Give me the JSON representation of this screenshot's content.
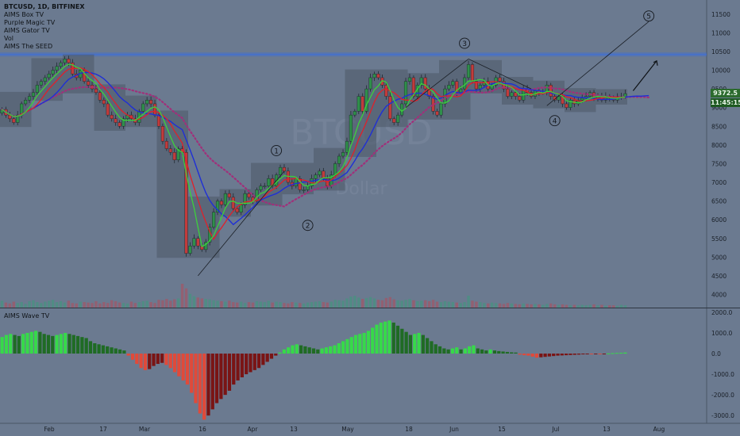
{
  "header": {
    "ticker": "BTCUSD, 1D, BITFINEX",
    "indicators": [
      "AIMS Box TV",
      "Purple Magic TV",
      "AIMS Gator TV",
      "Vol",
      "AIMS The SEED"
    ]
  },
  "watermark": {
    "symbol": "BTCUSD",
    "name": "Dollar"
  },
  "price_tags": {
    "last_price": "9372.5",
    "countdown": "11:45:15"
  },
  "colors": {
    "background": "#6b7a90",
    "up_candle": "#2f8f4a",
    "down_candle": "#c23b3b",
    "blue_line": "#1f2fd6",
    "red_line": "#e0202a",
    "green_line": "#3cd13c",
    "purple_dots": "#a0307a",
    "box_fill": "#4e5a6a",
    "resistance": "#3f6fd6",
    "wave_pos_bright": "#37d94a",
    "wave_pos_dark": "#1f6b24",
    "wave_neg_bright": "#e04a3a",
    "wave_neg_dark": "#7a1414"
  },
  "chart_data": [
    {
      "type": "candlestick",
      "title": "BTCUSD, 1D, BITFINEX",
      "x_ticks": [
        "Feb",
        "17",
        "Mar",
        "16",
        "Apr",
        "13",
        "May",
        "18",
        "Jun",
        "15",
        "Jul",
        "13",
        "Aug"
      ],
      "y_ticks": [
        4000,
        4500,
        5000,
        5500,
        6000,
        6500,
        7000,
        7500,
        8000,
        8500,
        9000,
        9500,
        10000,
        10500,
        11000,
        11500
      ],
      "ylim": [
        3650,
        11750
      ],
      "resistance_level": 10420,
      "closes": [
        8950,
        8800,
        8700,
        8600,
        8800,
        9100,
        9200,
        9300,
        9400,
        9600,
        9700,
        9800,
        9900,
        10000,
        10100,
        10200,
        10300,
        10200,
        9900,
        9800,
        10000,
        9700,
        9600,
        9500,
        9400,
        9200,
        9100,
        8800,
        8700,
        8600,
        8500,
        8700,
        8800,
        8700,
        8600,
        8900,
        9100,
        9200,
        9100,
        8800,
        8500,
        8100,
        7900,
        7800,
        7600,
        7900,
        7800,
        5100,
        5300,
        5500,
        5300,
        5200,
        5400,
        5800,
        6200,
        6500,
        6400,
        6700,
        6600,
        6300,
        6200,
        6400,
        6700,
        6600,
        6500,
        6800,
        6900,
        6900,
        7100,
        6900,
        7200,
        7400,
        7300,
        7000,
        6900,
        7100,
        6800,
        6800,
        6900,
        7100,
        7200,
        7300,
        7100,
        6900,
        7200,
        7500,
        7700,
        7800,
        8100,
        8800,
        8900,
        9300,
        8900,
        9500,
        9800,
        9900,
        9800,
        9600,
        9300,
        8700,
        8600,
        8800,
        9100,
        9700,
        9800,
        9300,
        9600,
        9800,
        9500,
        9300,
        8900,
        8800,
        9100,
        9500,
        9600,
        9700,
        9400,
        9500,
        9800,
        10150,
        9700,
        9500,
        9600,
        9700,
        9500,
        9600,
        9800,
        9700,
        9500,
        9300,
        9400,
        9300,
        9200,
        9500,
        9400,
        9300,
        9450,
        9400,
        9400,
        9600,
        9300,
        9200,
        9300,
        9100,
        9000,
        9200,
        9100,
        9200,
        9250,
        9300,
        9400,
        9250,
        9300,
        9200,
        9300,
        9250,
        9200,
        9300,
        9300,
        9372.5
      ],
      "volume": [
        150,
        110,
        90,
        130,
        100,
        120,
        80,
        140,
        160,
        120,
        100,
        130,
        150,
        170,
        120,
        140,
        110,
        150,
        100,
        90,
        130,
        120,
        110,
        100,
        140,
        90,
        120,
        100,
        160,
        140,
        110,
        100,
        90,
        130,
        100,
        120,
        140,
        150,
        120,
        100,
        170,
        160,
        190,
        150,
        180,
        200,
        520,
        420,
        300,
        250,
        220,
        200,
        190,
        180,
        160,
        150,
        140,
        130,
        150,
        120,
        110,
        130,
        100,
        120,
        110,
        140,
        130,
        120,
        150,
        110,
        130,
        120,
        100,
        90,
        120,
        110,
        100,
        90,
        110,
        120,
        130,
        140,
        120,
        110,
        130,
        170,
        160,
        150,
        200,
        240,
        260,
        220,
        190,
        210,
        230,
        200,
        170,
        160,
        210,
        230,
        180,
        160,
        150,
        170,
        190,
        160,
        140,
        150,
        160,
        140,
        170,
        130,
        120,
        140,
        130,
        120,
        110,
        100,
        120,
        260,
        150,
        130,
        120,
        100,
        90,
        110,
        100,
        90,
        80,
        100,
        90,
        80,
        70,
        90,
        80,
        70,
        80,
        70,
        60,
        80,
        90,
        70,
        60,
        70,
        60,
        50,
        60,
        50,
        60,
        50,
        60,
        70,
        50,
        60,
        40,
        50,
        50,
        40,
        60,
        50
      ]
    },
    {
      "type": "bar",
      "title": "AIMS Wave TV",
      "y_ticks": [
        2000,
        1000,
        0,
        -1000,
        -2000,
        -3000
      ],
      "ylim": [
        -3300,
        2150
      ],
      "values": [
        800,
        900,
        950,
        900,
        850,
        950,
        1000,
        1050,
        1100,
        1050,
        950,
        900,
        850,
        900,
        950,
        1000,
        950,
        900,
        850,
        800,
        750,
        600,
        500,
        450,
        400,
        350,
        300,
        250,
        200,
        150,
        -100,
        -300,
        -500,
        -700,
        -800,
        -750,
        -600,
        -500,
        -450,
        -550,
        -700,
        -900,
        -1100,
        -1300,
        -1500,
        -1900,
        -2400,
        -2900,
        -3200,
        -3000,
        -2700,
        -2400,
        -2200,
        -2000,
        -1800,
        -1500,
        -1300,
        -1150,
        -1000,
        -900,
        -800,
        -700,
        -550,
        -400,
        -250,
        -100,
        50,
        200,
        300,
        400,
        450,
        400,
        350,
        300,
        250,
        200,
        250,
        300,
        350,
        400,
        500,
        600,
        700,
        800,
        900,
        950,
        1000,
        1100,
        1250,
        1400,
        1500,
        1550,
        1600,
        1500,
        1350,
        1200,
        1050,
        900,
        950,
        1000,
        900,
        750,
        600,
        450,
        350,
        250,
        200,
        250,
        300,
        200,
        250,
        350,
        400,
        250,
        200,
        150,
        200,
        150,
        120,
        100,
        80,
        60,
        50,
        -50,
        -80,
        -100,
        -150,
        -200,
        -180,
        -160,
        -140,
        -120,
        -100,
        -90,
        -80,
        -70,
        -60,
        -50,
        -40,
        -30,
        -30,
        -20,
        -20,
        -10,
        10,
        20,
        30,
        40,
        50
      ]
    }
  ],
  "annotations": {
    "wave_1": "1",
    "wave_2": "2",
    "wave_3": "3",
    "wave_4": "4",
    "wave_5": "5"
  }
}
